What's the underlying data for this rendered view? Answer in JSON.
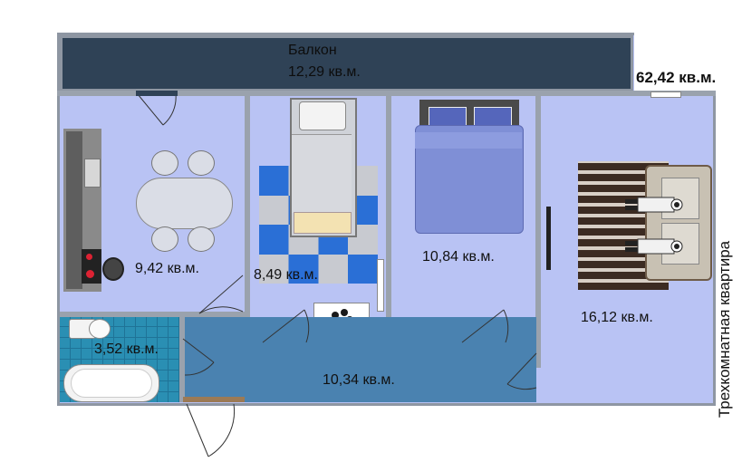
{
  "plan": {
    "total_area": "62,42 кв.м.",
    "apartment_type": "Трехкомнатная квартира",
    "rooms": {
      "balcony": {
        "name": "Балкон",
        "area": "12,29 кв.м."
      },
      "kitchen": {
        "area": "9,42 кв.м."
      },
      "bedroom_small": {
        "area": "8,49 кв.м."
      },
      "bedroom_large": {
        "area": "10,84 кв.м."
      },
      "living_room": {
        "area": "16,12 кв.м."
      },
      "bathroom": {
        "area": "3,52 кв.м."
      },
      "hallway": {
        "area": "10,34 кв.м."
      }
    }
  },
  "colors": {
    "balcony": "#2f4256",
    "room_floor": "#b9c3f4",
    "hallway": "#4a82b0",
    "bathroom_tile": "#2a8fb3",
    "wall": "#9aa2ad",
    "bed_blue": "#7f8fd6",
    "rug_blue": "#2a6fd6"
  }
}
